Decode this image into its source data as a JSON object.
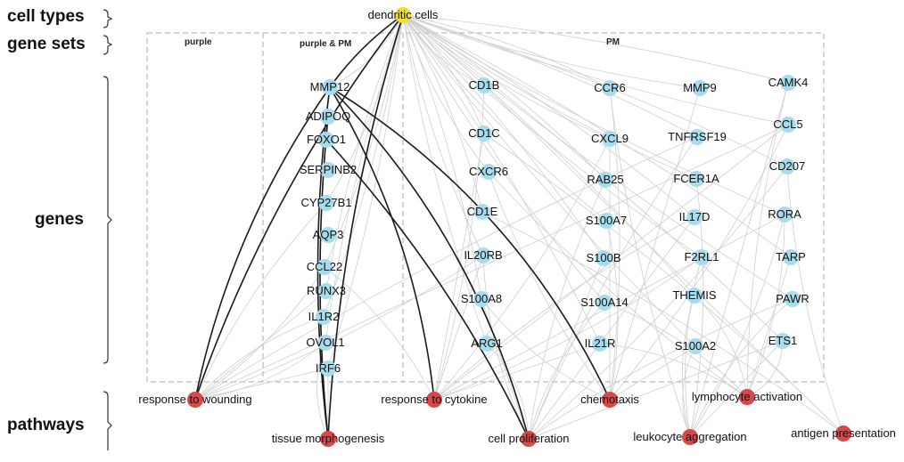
{
  "row_labels": {
    "cell_types": "cell types",
    "gene_sets": "gene sets",
    "genes": "genes",
    "pathways": "pathways"
  },
  "group_labels": {
    "purple": "purple",
    "purple_pm": "purple & PM",
    "pm": "PM"
  },
  "colors": {
    "cell_type": "#f0e030",
    "gene": "#a8dced",
    "pathway": "#d94848",
    "edge_light": "#cfcfcf",
    "edge_dark": "#1a1a1a",
    "box": "#aaaaaa"
  },
  "cell_types": [
    {
      "label": "dendritic cells"
    }
  ],
  "genes": {
    "purple_pm": [
      "MMP12",
      "ADIPOQ",
      "FOXO1",
      "SERPINB2",
      "CYP27B1",
      "AQP3",
      "CCL22",
      "RUNX3",
      "IL1R2",
      "OVOL1",
      "IRF6"
    ],
    "pm_col1": [
      "CD1B",
      "CD1C",
      "CXCR6",
      "CD1E",
      "IL20RB",
      "S100A8",
      "ARG1"
    ],
    "pm_col2": [
      "CCR6",
      "CXCL9",
      "RAB25",
      "S100A7",
      "S100B",
      "S100A14",
      "IL21R"
    ],
    "pm_col3": [
      "MMP9",
      "TNFRSF19",
      "FCER1A",
      "IL17D",
      "F2RL1",
      "THEMIS",
      "S100A2"
    ],
    "pm_col4": [
      "CAMK4",
      "CCL5",
      "CD207",
      "RORA",
      "TARP",
      "PAWR",
      "ETS1"
    ]
  },
  "pathways": [
    {
      "label": "response to wounding"
    },
    {
      "label": "tissue morphogenesis"
    },
    {
      "label": "response to cytokine"
    },
    {
      "label": "cell proliferation"
    },
    {
      "label": "chemotaxis"
    },
    {
      "label": "leukocyte aggregation"
    },
    {
      "label": "lymphocyte activation"
    },
    {
      "label": "antigen presentation"
    }
  ]
}
